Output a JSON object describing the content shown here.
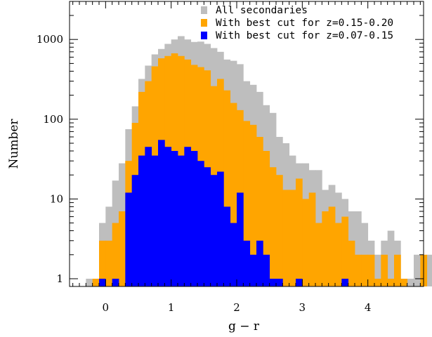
{
  "chart_data": {
    "type": "bar",
    "bin_width": 0.1,
    "x_start": -0.3,
    "xlabel": "g − r",
    "ylabel": "Number",
    "xlim": [
      -0.55,
      4.85
    ],
    "ylim": [
      0.8,
      3000
    ],
    "y_scale": "log",
    "grid": false,
    "legend_position": "top-right",
    "x_ticks": [
      0,
      1,
      2,
      3,
      4
    ],
    "x_tick_labels": [
      "0",
      "1",
      "2",
      "3",
      "4"
    ],
    "y_ticks": [
      1,
      10,
      100,
      1000
    ],
    "y_tick_labels": [
      "1",
      "10",
      "100",
      "1000"
    ],
    "series": [
      {
        "name": "All secondaries",
        "color": "#bebebe",
        "values": [
          1,
          1,
          5,
          8,
          17,
          28,
          75,
          145,
          320,
          470,
          650,
          760,
          880,
          1000,
          1100,
          1000,
          930,
          940,
          880,
          780,
          700,
          560,
          540,
          490,
          300,
          270,
          220,
          150,
          120,
          60,
          50,
          35,
          28,
          28,
          23,
          23,
          13,
          15,
          12,
          10,
          7,
          7,
          5,
          3,
          2,
          3,
          4,
          3,
          1,
          1,
          2,
          1,
          2,
          1,
          1,
          1
        ]
      },
      {
        "name": "With best cut for z=0.15-0.20",
        "color": "#ffa500",
        "values": [
          0,
          1,
          3,
          3,
          5,
          7,
          30,
          90,
          220,
          300,
          460,
          580,
          620,
          670,
          620,
          560,
          480,
          450,
          410,
          260,
          320,
          230,
          160,
          130,
          95,
          85,
          60,
          40,
          25,
          20,
          13,
          13,
          18,
          10,
          12,
          5,
          7,
          8,
          5,
          6,
          3,
          2,
          2,
          2,
          1,
          2,
          1,
          2,
          1,
          0,
          0,
          2,
          0,
          1,
          1,
          1
        ]
      },
      {
        "name": "With best cut for z=0.07-0.15",
        "color": "#0000ff",
        "values": [
          0,
          0,
          1,
          0,
          1,
          0,
          12,
          20,
          35,
          45,
          35,
          55,
          45,
          40,
          35,
          45,
          40,
          30,
          25,
          20,
          22,
          8,
          5,
          12,
          3,
          2,
          3,
          2,
          1,
          1,
          0,
          0,
          1,
          0,
          0,
          0,
          0,
          0,
          0,
          1,
          0,
          0,
          0,
          0,
          0,
          0,
          0,
          0,
          0,
          0,
          0,
          0,
          0,
          0,
          0,
          0
        ]
      }
    ]
  }
}
